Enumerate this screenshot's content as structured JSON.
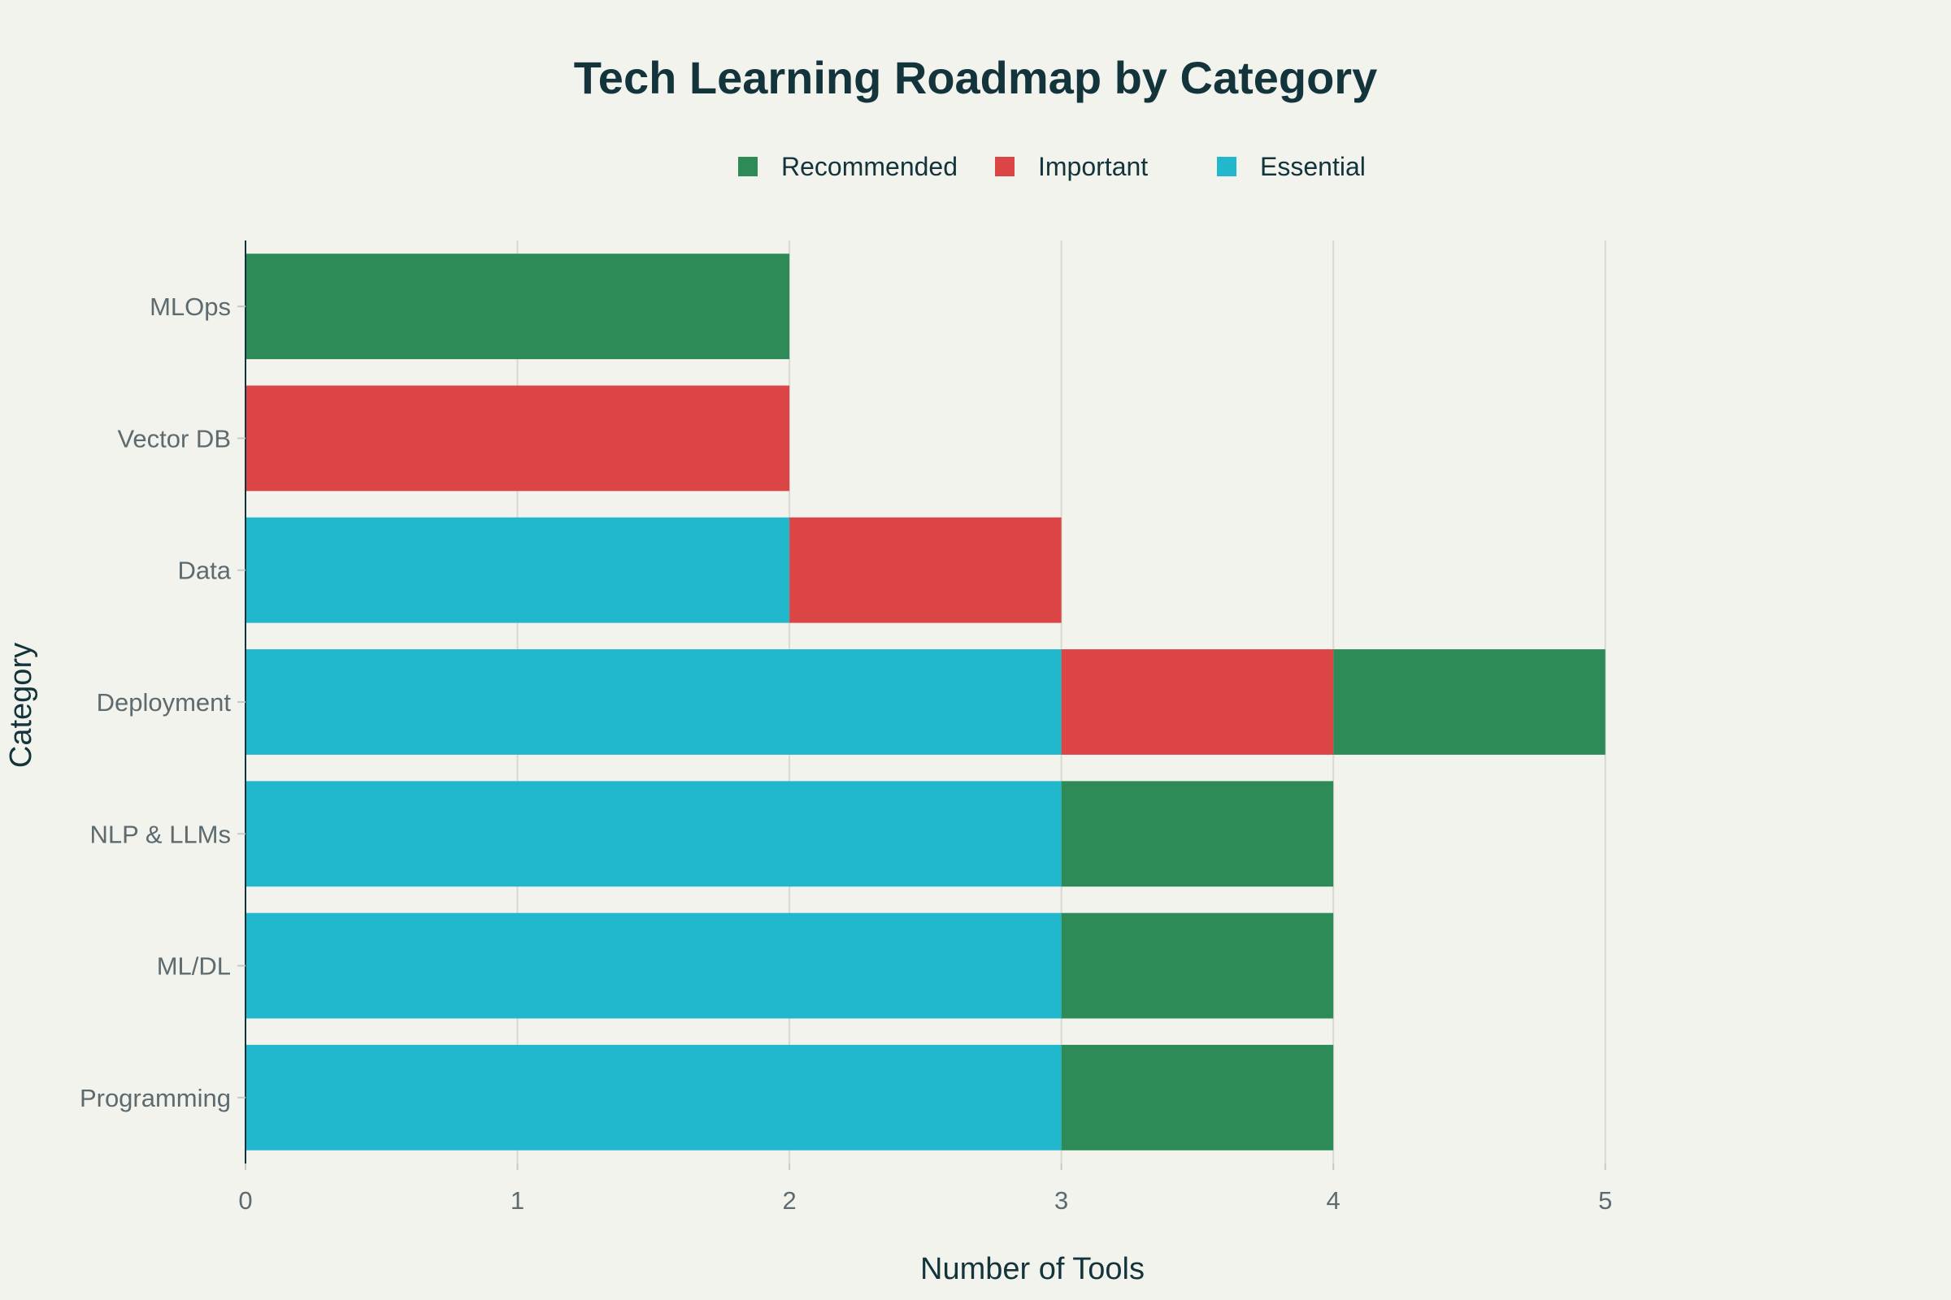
{
  "chart_data": {
    "type": "bar",
    "orientation": "horizontal",
    "stacked": true,
    "title": "Tech Learning Roadmap by Category",
    "xlabel": "Number of Tools",
    "ylabel": "Category",
    "xlim": [
      0,
      5.5
    ],
    "x_ticks": [
      "0",
      "1",
      "2",
      "3",
      "4",
      "5"
    ],
    "categories": [
      "Programming",
      "ML/DL",
      "NLP & LLMs",
      "Deployment",
      "Data",
      "Vector DB",
      "MLOps"
    ],
    "series": [
      {
        "name": "Essential",
        "color": "#21b8cd",
        "values": [
          3,
          3,
          3,
          3,
          2,
          0,
          0
        ]
      },
      {
        "name": "Important",
        "color": "#db4545",
        "values": [
          0,
          0,
          0,
          1,
          1,
          2,
          0
        ]
      },
      {
        "name": "Recommended",
        "color": "#2e8b57",
        "values": [
          1,
          1,
          1,
          1,
          0,
          0,
          2
        ]
      }
    ],
    "legend": {
      "position": "top-center",
      "order": [
        "Recommended",
        "Important",
        "Essential"
      ]
    },
    "grid": {
      "x": true,
      "y": false
    },
    "background": "#f3f3ee"
  }
}
